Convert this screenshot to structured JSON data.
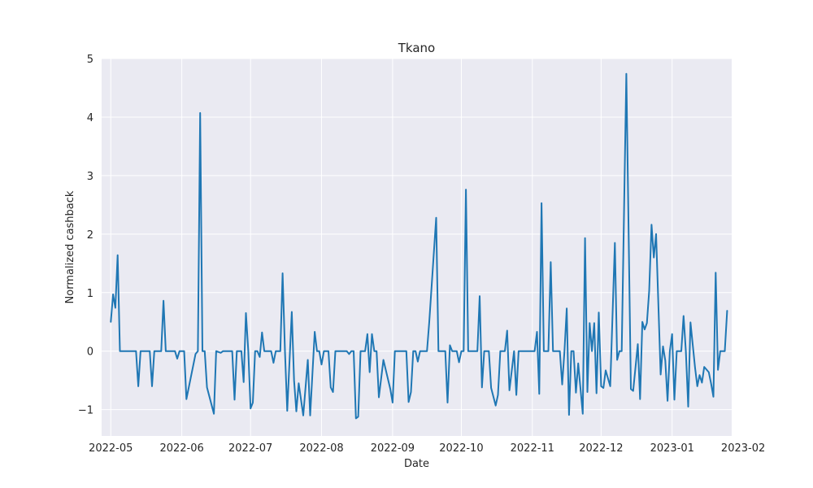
{
  "chart_data": {
    "type": "line",
    "title": "Tkano",
    "xlabel": "Date",
    "ylabel": "Normalized cashback",
    "x_range": [
      "2022-04-27",
      "2023-01-27"
    ],
    "y_range": [
      -1.45,
      5.0
    ],
    "x_ticks": [
      "2022-05-01",
      "2022-06-01",
      "2022-07-01",
      "2022-08-01",
      "2022-09-01",
      "2022-10-01",
      "2022-11-01",
      "2022-12-01",
      "2023-01-01",
      "2023-02-01"
    ],
    "x_tick_labels": [
      "2022-05",
      "2022-06",
      "2022-07",
      "2022-08",
      "2022-09",
      "2022-10",
      "2022-11",
      "2022-12",
      "2023-01",
      "2023-02"
    ],
    "y_ticks": [
      -1,
      0,
      1,
      2,
      3,
      4,
      5
    ],
    "y_tick_labels": [
      "−1",
      "0",
      "1",
      "2",
      "3",
      "4",
      "5"
    ],
    "grid": true,
    "background": "#eaeaf2",
    "series": [
      {
        "color": "#1f77b4",
        "points": [
          [
            "2022-05-01",
            0.5
          ],
          [
            "2022-05-02",
            0.97
          ],
          [
            "2022-05-03",
            0.74
          ],
          [
            "2022-05-04",
            1.64
          ],
          [
            "2022-05-05",
            0.0
          ],
          [
            "2022-05-08",
            0.0
          ],
          [
            "2022-05-12",
            0.0
          ],
          [
            "2022-05-13",
            -0.6
          ],
          [
            "2022-05-14",
            0.0
          ],
          [
            "2022-05-18",
            0.0
          ],
          [
            "2022-05-19",
            -0.6
          ],
          [
            "2022-05-20",
            0.0
          ],
          [
            "2022-05-23",
            0.0
          ],
          [
            "2022-05-24",
            0.86
          ],
          [
            "2022-05-25",
            0.0
          ],
          [
            "2022-05-29",
            0.0
          ],
          [
            "2022-05-30",
            -0.13
          ],
          [
            "2022-05-31",
            0.0
          ],
          [
            "2022-06-02",
            0.0
          ],
          [
            "2022-06-03",
            -0.82
          ],
          [
            "2022-06-07",
            -0.05
          ],
          [
            "2022-06-08",
            0.0
          ],
          [
            "2022-06-09",
            4.07
          ],
          [
            "2022-06-10",
            0.0
          ],
          [
            "2022-06-11",
            0.0
          ],
          [
            "2022-06-12",
            -0.62
          ],
          [
            "2022-06-15",
            -1.07
          ],
          [
            "2022-06-16",
            0.0
          ],
          [
            "2022-06-18",
            -0.03
          ],
          [
            "2022-06-19",
            0.0
          ],
          [
            "2022-06-23",
            0.0
          ],
          [
            "2022-06-24",
            -0.83
          ],
          [
            "2022-06-25",
            0.0
          ],
          [
            "2022-06-27",
            0.0
          ],
          [
            "2022-06-28",
            -0.53
          ],
          [
            "2022-06-29",
            0.65
          ],
          [
            "2022-06-30",
            0.0
          ],
          [
            "2022-07-01",
            -0.98
          ],
          [
            "2022-07-02",
            -0.88
          ],
          [
            "2022-07-03",
            0.0
          ],
          [
            "2022-07-04",
            0.0
          ],
          [
            "2022-07-05",
            -0.1
          ],
          [
            "2022-07-06",
            0.32
          ],
          [
            "2022-07-07",
            0.0
          ],
          [
            "2022-07-10",
            0.0
          ],
          [
            "2022-07-11",
            -0.2
          ],
          [
            "2022-07-12",
            0.0
          ],
          [
            "2022-07-14",
            0.0
          ],
          [
            "2022-07-15",
            1.33
          ],
          [
            "2022-07-16",
            0.0
          ],
          [
            "2022-07-17",
            -1.02
          ],
          [
            "2022-07-19",
            0.67
          ],
          [
            "2022-07-20",
            -0.5
          ],
          [
            "2022-07-21",
            -1.03
          ],
          [
            "2022-07-22",
            -0.55
          ],
          [
            "2022-07-24",
            -1.1
          ],
          [
            "2022-07-26",
            -0.15
          ],
          [
            "2022-07-27",
            -1.1
          ],
          [
            "2022-07-29",
            0.33
          ],
          [
            "2022-07-30",
            0.0
          ],
          [
            "2022-07-31",
            0.0
          ],
          [
            "2022-08-01",
            -0.23
          ],
          [
            "2022-08-02",
            0.0
          ],
          [
            "2022-08-04",
            0.0
          ],
          [
            "2022-08-05",
            -0.62
          ],
          [
            "2022-08-06",
            -0.7
          ],
          [
            "2022-08-07",
            0.0
          ],
          [
            "2022-08-12",
            0.0
          ],
          [
            "2022-08-13",
            -0.05
          ],
          [
            "2022-08-14",
            0.0
          ],
          [
            "2022-08-15",
            0.0
          ],
          [
            "2022-08-16",
            -1.15
          ],
          [
            "2022-08-17",
            -1.12
          ],
          [
            "2022-08-18",
            0.0
          ],
          [
            "2022-08-20",
            0.0
          ],
          [
            "2022-08-21",
            0.29
          ],
          [
            "2022-08-22",
            -0.36
          ],
          [
            "2022-08-23",
            0.29
          ],
          [
            "2022-08-24",
            0.0
          ],
          [
            "2022-08-25",
            0.0
          ],
          [
            "2022-08-26",
            -0.79
          ],
          [
            "2022-08-28",
            -0.15
          ],
          [
            "2022-08-31",
            -0.65
          ],
          [
            "2022-09-01",
            -0.88
          ],
          [
            "2022-09-02",
            0.0
          ],
          [
            "2022-09-07",
            0.0
          ],
          [
            "2022-09-08",
            -0.87
          ],
          [
            "2022-09-09",
            -0.7
          ],
          [
            "2022-09-10",
            0.0
          ],
          [
            "2022-09-11",
            0.0
          ],
          [
            "2022-09-12",
            -0.18
          ],
          [
            "2022-09-13",
            0.0
          ],
          [
            "2022-09-16",
            0.0
          ],
          [
            "2022-09-17",
            0.5
          ],
          [
            "2022-09-20",
            2.28
          ],
          [
            "2022-09-21",
            0.0
          ],
          [
            "2022-09-24",
            0.0
          ],
          [
            "2022-09-25",
            -0.88
          ],
          [
            "2022-09-26",
            0.1
          ],
          [
            "2022-09-27",
            0.0
          ],
          [
            "2022-09-29",
            0.0
          ],
          [
            "2022-09-30",
            -0.19
          ],
          [
            "2022-10-01",
            0.0
          ],
          [
            "2022-10-02",
            0.0
          ],
          [
            "2022-10-03",
            2.76
          ],
          [
            "2022-10-04",
            0.0
          ],
          [
            "2022-10-08",
            0.0
          ],
          [
            "2022-10-09",
            0.94
          ],
          [
            "2022-10-10",
            -0.62
          ],
          [
            "2022-10-11",
            0.0
          ],
          [
            "2022-10-13",
            0.0
          ],
          [
            "2022-10-14",
            -0.63
          ],
          [
            "2022-10-16",
            -0.93
          ],
          [
            "2022-10-17",
            -0.75
          ],
          [
            "2022-10-18",
            0.0
          ],
          [
            "2022-10-20",
            0.0
          ],
          [
            "2022-10-21",
            0.35
          ],
          [
            "2022-10-22",
            -0.67
          ],
          [
            "2022-10-24",
            0.0
          ],
          [
            "2022-10-25",
            -0.75
          ],
          [
            "2022-10-26",
            0.0
          ],
          [
            "2022-11-02",
            0.0
          ],
          [
            "2022-11-03",
            0.33
          ],
          [
            "2022-11-04",
            -0.73
          ],
          [
            "2022-11-05",
            2.53
          ],
          [
            "2022-11-06",
            0.0
          ],
          [
            "2022-11-08",
            0.0
          ],
          [
            "2022-11-09",
            1.52
          ],
          [
            "2022-11-10",
            0.0
          ],
          [
            "2022-11-12",
            0.0
          ],
          [
            "2022-11-13",
            0.0
          ],
          [
            "2022-11-14",
            -0.57
          ],
          [
            "2022-11-15",
            0.0
          ],
          [
            "2022-11-16",
            0.73
          ],
          [
            "2022-11-17",
            -1.09
          ],
          [
            "2022-11-18",
            0.0
          ],
          [
            "2022-11-19",
            0.0
          ],
          [
            "2022-11-20",
            -0.71
          ],
          [
            "2022-11-21",
            -0.21
          ],
          [
            "2022-11-23",
            -1.07
          ],
          [
            "2022-11-24",
            1.93
          ],
          [
            "2022-11-25",
            -0.7
          ],
          [
            "2022-11-26",
            0.48
          ],
          [
            "2022-11-27",
            0.0
          ],
          [
            "2022-11-28",
            0.48
          ],
          [
            "2022-11-29",
            -0.72
          ],
          [
            "2022-11-30",
            0.66
          ],
          [
            "2022-12-01",
            -0.6
          ],
          [
            "2022-12-02",
            -0.63
          ],
          [
            "2022-12-03",
            -0.33
          ],
          [
            "2022-12-05",
            -0.6
          ],
          [
            "2022-12-07",
            1.85
          ],
          [
            "2022-12-08",
            -0.15
          ],
          [
            "2022-12-09",
            0.0
          ],
          [
            "2022-12-10",
            0.0
          ],
          [
            "2022-12-12",
            4.74
          ],
          [
            "2022-12-14",
            -0.65
          ],
          [
            "2022-12-15",
            -0.68
          ],
          [
            "2022-12-17",
            0.12
          ],
          [
            "2022-12-18",
            -0.82
          ],
          [
            "2022-12-19",
            0.5
          ],
          [
            "2022-12-20",
            0.37
          ],
          [
            "2022-12-21",
            0.48
          ],
          [
            "2022-12-22",
            1.03
          ],
          [
            "2022-12-23",
            2.16
          ],
          [
            "2022-12-24",
            1.6
          ],
          [
            "2022-12-25",
            2.0
          ],
          [
            "2022-12-27",
            -0.4
          ],
          [
            "2022-12-28",
            0.08
          ],
          [
            "2022-12-29",
            -0.16
          ],
          [
            "2022-12-30",
            -0.85
          ],
          [
            "2022-12-31",
            0.0
          ],
          [
            "2023-01-01",
            0.29
          ],
          [
            "2023-01-02",
            -0.83
          ],
          [
            "2023-01-03",
            0.0
          ],
          [
            "2023-01-05",
            0.0
          ],
          [
            "2023-01-06",
            0.6
          ],
          [
            "2023-01-07",
            0.0
          ],
          [
            "2023-01-08",
            -0.95
          ],
          [
            "2023-01-09",
            0.49
          ],
          [
            "2023-01-11",
            -0.28
          ],
          [
            "2023-01-12",
            -0.6
          ],
          [
            "2023-01-13",
            -0.41
          ],
          [
            "2023-01-14",
            -0.54
          ],
          [
            "2023-01-15",
            -0.27
          ],
          [
            "2023-01-17",
            -0.36
          ],
          [
            "2023-01-18",
            -0.55
          ],
          [
            "2023-01-19",
            -0.78
          ],
          [
            "2023-01-20",
            1.34
          ],
          [
            "2023-01-21",
            -0.32
          ],
          [
            "2023-01-22",
            0.0
          ],
          [
            "2023-01-24",
            0.0
          ],
          [
            "2023-01-25",
            0.69
          ]
        ]
      }
    ]
  }
}
